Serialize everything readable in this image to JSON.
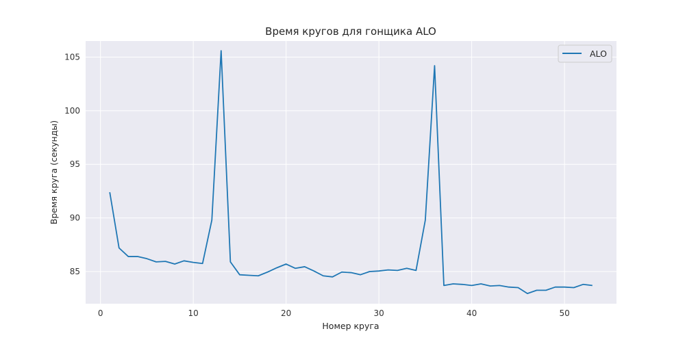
{
  "chart_data": {
    "type": "line",
    "title": "Время кругов для гонщика ALO",
    "xlabel": "Номер круга",
    "ylabel": "Время круга (секунды)",
    "xlim": [
      -1.6,
      55.6
    ],
    "ylim": [
      82.0,
      106.5
    ],
    "xticks": [
      0,
      10,
      20,
      30,
      40,
      50
    ],
    "yticks": [
      85,
      90,
      95,
      100,
      105
    ],
    "grid": true,
    "legend": "top-right",
    "background": "#eaeaf2",
    "series": [
      {
        "name": "ALO",
        "color": "#1f77b4",
        "x": [
          1,
          2,
          3,
          4,
          5,
          6,
          7,
          8,
          9,
          10,
          11,
          12,
          13,
          14,
          15,
          16,
          17,
          18,
          19,
          20,
          21,
          22,
          23,
          24,
          25,
          26,
          27,
          28,
          29,
          30,
          31,
          32,
          33,
          34,
          35,
          36,
          37,
          38,
          39,
          40,
          41,
          42,
          43,
          44,
          45,
          46,
          47,
          48,
          49,
          50,
          51,
          52,
          53
        ],
        "values": [
          92.4,
          87.2,
          86.4,
          86.4,
          86.2,
          85.9,
          85.95,
          85.7,
          86.0,
          85.85,
          85.75,
          89.8,
          105.6,
          85.9,
          84.7,
          84.65,
          84.6,
          84.95,
          85.35,
          85.7,
          85.3,
          85.45,
          85.05,
          84.6,
          84.5,
          84.95,
          84.9,
          84.7,
          85.0,
          85.05,
          85.15,
          85.1,
          85.3,
          85.1,
          89.8,
          104.2,
          83.7,
          83.85,
          83.8,
          83.7,
          83.85,
          83.65,
          83.7,
          83.55,
          83.5,
          82.95,
          83.25,
          83.25,
          83.55,
          83.55,
          83.5,
          83.8,
          83.7
        ]
      }
    ]
  }
}
